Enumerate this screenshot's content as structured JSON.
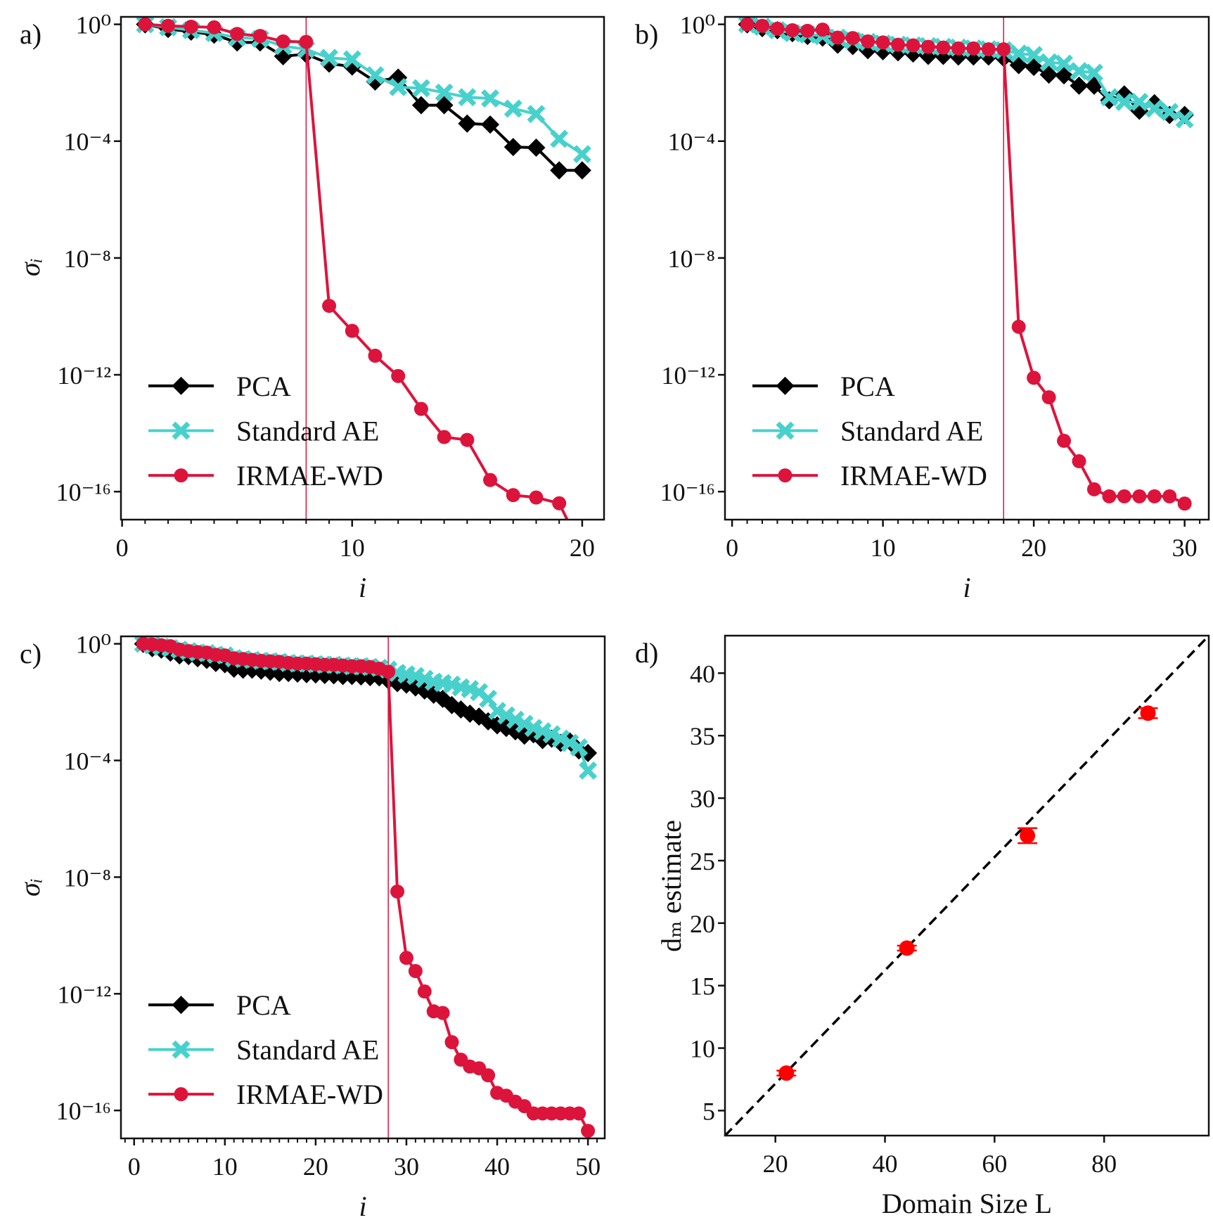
{
  "chart_data": [
    {
      "panel_label": "a)",
      "type": "line",
      "xlabel": "i",
      "ylabel": "σᵢ",
      "yscale": "log",
      "xlim": [
        -0.05,
        20.95
      ],
      "ylim": [
        1.1e-17,
        1.8
      ],
      "xticks": [
        0,
        10,
        20
      ],
      "xtick_labels": [
        "0",
        "10",
        "20"
      ],
      "xminor_step": 1,
      "yticks": [
        1,
        0.0001,
        1e-08,
        1e-12,
        1e-16
      ],
      "ytick_labels": [
        "10⁰",
        "10⁻⁴",
        "10⁻⁸",
        "10⁻¹²",
        "10⁻¹⁶"
      ],
      "vline": 8,
      "legend_position": "lower-left",
      "x": [
        1,
        2,
        3,
        4,
        5,
        6,
        7,
        8,
        9,
        10,
        11,
        12,
        13,
        14,
        15,
        16,
        17,
        18,
        19,
        20
      ],
      "series": [
        {
          "name": "PCA",
          "color": "#000000",
          "marker": "diamond",
          "values": [
            1,
            0.69,
            0.56,
            0.44,
            0.24,
            0.24,
            0.081,
            0.095,
            0.045,
            0.036,
            0.011,
            0.015,
            0.0017,
            0.0017,
            0.0004,
            0.00037,
            6.3e-05,
            6e-05,
            1e-05,
            1e-05
          ]
        },
        {
          "name": "Standard AE",
          "color": "#48D1CC",
          "marker": "x",
          "values": [
            1,
            0.79,
            0.63,
            0.5,
            0.35,
            0.32,
            0.18,
            0.14,
            0.071,
            0.063,
            0.018,
            0.0071,
            0.0065,
            0.0046,
            0.0032,
            0.0029,
            0.0013,
            0.00085,
            0.00012,
            3.6e-05
          ]
        },
        {
          "name": "IRMAE-WD",
          "color": "#DC143C",
          "marker": "circle",
          "values": [
            1,
            0.89,
            0.83,
            0.79,
            0.47,
            0.4,
            0.26,
            0.25,
            2.3e-10,
            3.2e-11,
            4.5e-12,
            9.1e-13,
            6.8e-14,
            7.4e-15,
            5.9e-15,
            2.5e-16,
            7.6e-17,
            6.3e-17,
            4e-17,
            1e-18
          ]
        }
      ]
    },
    {
      "panel_label": "b)",
      "type": "line",
      "xlabel": "i",
      "ylabel": "",
      "yscale": "log",
      "xlim": [
        -0.47,
        31.6
      ],
      "ylim": [
        1.1e-17,
        1.8
      ],
      "xticks": [
        0,
        10,
        20,
        30
      ],
      "xtick_labels": [
        "0",
        "10",
        "20",
        "30"
      ],
      "xminor_step": 1,
      "yticks": [
        1,
        0.0001,
        1e-08,
        1e-12,
        1e-16
      ],
      "ytick_labels": [
        "10⁰",
        "10⁻⁴",
        "10⁻⁸",
        "10⁻¹²",
        "10⁻¹⁶"
      ],
      "vline": 18,
      "legend_position": "lower-left",
      "x": [
        1,
        2,
        3,
        4,
        5,
        6,
        7,
        8,
        9,
        10,
        11,
        12,
        13,
        14,
        15,
        16,
        17,
        18,
        19,
        20,
        21,
        22,
        23,
        24,
        25,
        26,
        27,
        28,
        29,
        30
      ],
      "series": [
        {
          "name": "PCA",
          "color": "#000000",
          "marker": "diamond",
          "values": [
            1,
            0.74,
            0.63,
            0.5,
            0.4,
            0.35,
            0.2,
            0.18,
            0.13,
            0.12,
            0.11,
            0.1,
            0.083,
            0.083,
            0.079,
            0.079,
            0.079,
            0.071,
            0.04,
            0.035,
            0.019,
            0.018,
            0.0079,
            0.0079,
            0.0025,
            0.004,
            0.0011,
            0.002,
            0.00079,
            0.00079
          ]
        },
        {
          "name": "Standard AE",
          "color": "#48D1CC",
          "marker": "x",
          "values": [
            1,
            0.83,
            0.63,
            0.5,
            0.45,
            0.4,
            0.35,
            0.28,
            0.25,
            0.22,
            0.2,
            0.19,
            0.18,
            0.17,
            0.16,
            0.15,
            0.14,
            0.13,
            0.1,
            0.089,
            0.05,
            0.045,
            0.025,
            0.022,
            0.0032,
            0.0022,
            0.0022,
            0.0013,
            0.001,
            0.00056
          ]
        },
        {
          "name": "IRMAE-WD",
          "color": "#DC143C",
          "marker": "circle",
          "values": [
            1,
            0.89,
            0.71,
            0.63,
            0.6,
            0.66,
            0.35,
            0.34,
            0.26,
            0.24,
            0.2,
            0.19,
            0.17,
            0.16,
            0.15,
            0.15,
            0.14,
            0.14,
            4.4e-11,
            7.9e-13,
            1.7e-13,
            5.5e-15,
            1.1e-15,
            1.2e-16,
            6.9e-17,
            6.9e-17,
            6.9e-17,
            6.9e-17,
            6.9e-17,
            3.9e-17
          ]
        }
      ]
    },
    {
      "panel_label": "c)",
      "type": "line",
      "xlabel": "i",
      "ylabel": "σᵢ",
      "yscale": "log",
      "xlim": [
        -1.45,
        51.85
      ],
      "ylim": [
        1.1e-17,
        1.8
      ],
      "xticks": [
        0,
        10,
        20,
        30,
        40,
        50
      ],
      "xtick_labels": [
        "0",
        "10",
        "20",
        "30",
        "40",
        "50"
      ],
      "xminor_step": 1,
      "yticks": [
        1,
        0.0001,
        1e-08,
        1e-12,
        1e-16
      ],
      "ytick_labels": [
        "10⁰",
        "10⁻⁴",
        "10⁻⁸",
        "10⁻¹²",
        "10⁻¹⁶"
      ],
      "vline": 28,
      "legend_position": "lower-left",
      "x": [
        1,
        2,
        3,
        4,
        5,
        6,
        7,
        8,
        9,
        10,
        11,
        12,
        13,
        14,
        15,
        16,
        17,
        18,
        19,
        20,
        21,
        22,
        23,
        24,
        25,
        26,
        27,
        28,
        29,
        30,
        31,
        32,
        33,
        34,
        35,
        36,
        37,
        38,
        39,
        40,
        41,
        42,
        43,
        44,
        45,
        46,
        47,
        48,
        49,
        50
      ],
      "series": [
        {
          "name": "PCA",
          "color": "#000000",
          "marker": "diamond",
          "values": [
            1,
            0.71,
            0.63,
            0.5,
            0.4,
            0.38,
            0.32,
            0.28,
            0.22,
            0.2,
            0.14,
            0.13,
            0.13,
            0.12,
            0.11,
            0.1,
            0.1,
            0.095,
            0.091,
            0.089,
            0.085,
            0.083,
            0.079,
            0.079,
            0.076,
            0.072,
            0.071,
            0.056,
            0.045,
            0.04,
            0.032,
            0.025,
            0.018,
            0.013,
            0.0079,
            0.0056,
            0.004,
            0.0032,
            0.0022,
            0.0016,
            0.0013,
            0.001,
            0.00071,
            0.00079,
            0.0005,
            0.00056,
            0.0004,
            0.00045,
            0.00022,
            0.00018
          ]
        },
        {
          "name": "Standard AE",
          "color": "#48D1CC",
          "marker": "x",
          "values": [
            1,
            0.89,
            0.79,
            0.71,
            0.63,
            0.56,
            0.5,
            0.48,
            0.42,
            0.4,
            0.32,
            0.3,
            0.28,
            0.26,
            0.25,
            0.24,
            0.22,
            0.21,
            0.21,
            0.2,
            0.19,
            0.19,
            0.18,
            0.17,
            0.17,
            0.16,
            0.15,
            0.13,
            0.1,
            0.089,
            0.079,
            0.063,
            0.05,
            0.045,
            0.04,
            0.032,
            0.028,
            0.022,
            0.013,
            0.005,
            0.0035,
            0.0025,
            0.0018,
            0.0013,
            0.001,
            0.00079,
            0.00056,
            0.0004,
            0.00028,
            4.5e-05
          ]
        },
        {
          "name": "IRMAE-WD",
          "color": "#DC143C",
          "marker": "circle",
          "values": [
            1,
            0.95,
            0.89,
            0.83,
            0.63,
            0.56,
            0.52,
            0.5,
            0.42,
            0.4,
            0.32,
            0.3,
            0.28,
            0.26,
            0.25,
            0.24,
            0.22,
            0.21,
            0.21,
            0.2,
            0.19,
            0.19,
            0.18,
            0.17,
            0.17,
            0.16,
            0.14,
            0.11,
            3.2e-09,
            1.7e-11,
            6e-12,
            1.2e-12,
            2.5e-13,
            2.2e-13,
            2.2e-14,
            5.5e-15,
            3.2e-15,
            2.8e-15,
            1.6e-15,
            4e-16,
            3.2e-16,
            2e-16,
            1.4e-16,
            7.9e-17,
            7.9e-17,
            7.9e-17,
            7.9e-17,
            7.9e-17,
            7.9e-17,
            2e-17
          ]
        }
      ]
    },
    {
      "panel_label": "d)",
      "type": "scatter",
      "xlabel": "Domain Size L",
      "ylabel": "dₘ estimate",
      "yscale": "linear",
      "xlim": [
        10.8,
        99.1
      ],
      "ylim": [
        3.0,
        43.0
      ],
      "xticks": [
        20,
        40,
        60,
        80
      ],
      "xtick_labels": [
        "20",
        "40",
        "60",
        "80"
      ],
      "yticks": [
        5,
        10,
        15,
        20,
        25,
        30,
        35,
        40
      ],
      "ytick_labels": [
        "5",
        "10",
        "15",
        "20",
        "25",
        "30",
        "35",
        "40"
      ],
      "reference_line": {
        "slope": 0.453,
        "intercept": -1.9,
        "style": "dashed",
        "color": "#000000"
      },
      "points": {
        "color": "#FF0000",
        "x": [
          22,
          44,
          66,
          88
        ],
        "y": [
          8.0,
          18.0,
          27.0,
          36.8
        ],
        "yerr": [
          0.2,
          0.2,
          0.6,
          0.4
        ]
      }
    }
  ]
}
